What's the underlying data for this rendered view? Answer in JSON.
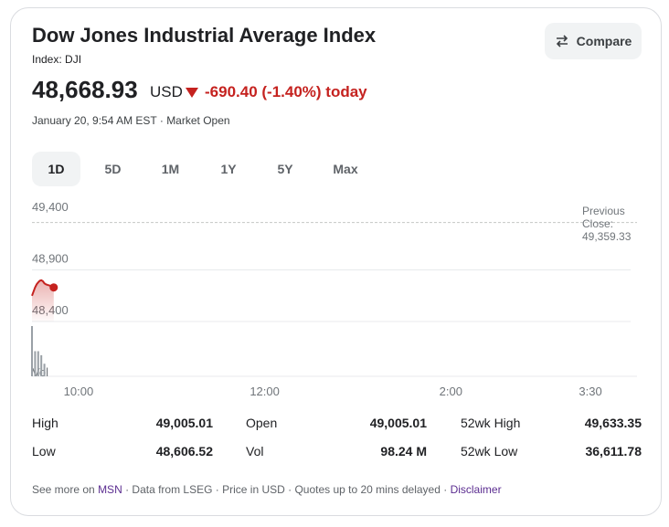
{
  "header": {
    "title": "Dow Jones Industrial Average Index",
    "subtitle": "Index: DJI",
    "price": "48,668.93",
    "currency": "USD",
    "change": "-690.40 (-1.40%) today",
    "timestamp": "January 20, 9:54 AM EST · Market Open",
    "compare_label": "Compare"
  },
  "tabs": [
    {
      "label": "1D",
      "active": true
    },
    {
      "label": "5D",
      "active": false
    },
    {
      "label": "1M",
      "active": false
    },
    {
      "label": "1Y",
      "active": false
    },
    {
      "label": "5Y",
      "active": false
    },
    {
      "label": "Max",
      "active": false
    }
  ],
  "chart_data": {
    "type": "line",
    "y_ticks": [
      "49,400",
      "48,900",
      "48,400"
    ],
    "y_tick_values": [
      49400,
      48900,
      48400
    ],
    "x_ticks": [
      "10:00",
      "12:00",
      "2:00",
      "3:30"
    ],
    "x_tick_times": [
      600,
      720,
      840,
      930
    ],
    "x_range": [
      570,
      960
    ],
    "ylim": [
      48400,
      49400
    ],
    "volume_label": "Vol",
    "previous_close_label": "Previous Close:",
    "previous_close": 49359.33,
    "previous_close_text": "49,359.33",
    "series": [
      {
        "times": [
          570,
          571,
          572,
          573,
          574,
          575,
          576,
          577,
          578,
          579,
          580,
          581,
          582,
          583,
          584
        ],
        "values": [
          48650,
          48690,
          48730,
          48760,
          48780,
          48795,
          48800,
          48790,
          48770,
          48760,
          48755,
          48750,
          48745,
          48735,
          48730
        ]
      }
    ],
    "volume_times": [
      570,
      572,
      574,
      576,
      578
    ],
    "volume_levels": [
      1.0,
      0.5,
      0.5,
      0.42,
      0.25
    ],
    "line_color": "#c5221f",
    "gridline_color": "#e8eaed"
  },
  "stats": {
    "high_label": "High",
    "high": "49,005.01",
    "low_label": "Low",
    "low": "48,606.52",
    "open_label": "Open",
    "open": "49,005.01",
    "vol_label": "Vol",
    "vol": "98.24 M",
    "wk52_high_label": "52wk High",
    "wk52_high": "49,633.35",
    "wk52_low_label": "52wk Low",
    "wk52_low": "36,611.78"
  },
  "footer": {
    "see_more": "See more on",
    "msn": "MSN",
    "rest": "· Data from LSEG · Price in USD · Quotes up to 20 mins delayed ·",
    "disclaimer": "Disclaimer"
  }
}
